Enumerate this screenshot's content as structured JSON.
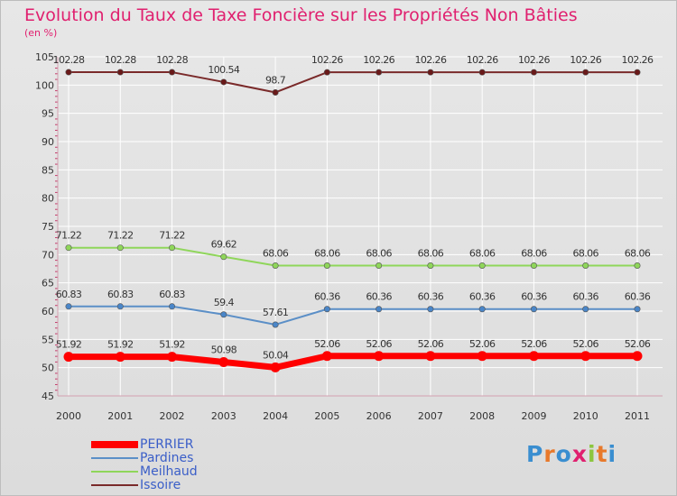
{
  "title": "Evolution du Taux de Taxe Foncière sur les Propriétés Non Bâties",
  "unit_label": "(en %)",
  "logo_text": "Proxiti",
  "colors": {
    "title": "#e0206f",
    "axis_text": "#333333",
    "legend_text": "#3a5ec8",
    "grid": "#ffffff"
  },
  "chart_data": {
    "type": "line",
    "title": "Evolution du Taux de Taxe Foncière sur les Propriétés Non Bâties",
    "ylabel": "(en %)",
    "xlabel": "",
    "categories": [
      "2000",
      "2001",
      "2002",
      "2003",
      "2004",
      "2005",
      "2006",
      "2007",
      "2008",
      "2009",
      "2010",
      "2011"
    ],
    "ylim": [
      45,
      105
    ],
    "yticks": [
      45,
      50,
      55,
      60,
      65,
      70,
      75,
      80,
      85,
      90,
      95,
      100,
      105
    ],
    "grid": true,
    "legend_position": "bottom-left",
    "series": [
      {
        "name": "PERRIER",
        "color": "#ff0000",
        "values": [
          51.92,
          51.92,
          51.92,
          50.98,
          50.04,
          52.06,
          52.06,
          52.06,
          52.06,
          52.06,
          52.06,
          52.06
        ],
        "labels": [
          "51.92",
          "51.92",
          "51.92",
          "50.98",
          "50.04",
          "52.06",
          "52.06",
          "52.06",
          "52.06",
          "52.06",
          "52.06",
          "52.06"
        ]
      },
      {
        "name": "Pardines",
        "color": "#5b8fc7",
        "values": [
          60.83,
          60.83,
          60.83,
          59.4,
          57.61,
          60.36,
          60.36,
          60.36,
          60.36,
          60.36,
          60.36,
          60.36
        ],
        "labels": [
          "60.83",
          "60.83",
          "60.83",
          "59.4",
          "57.61",
          "60.36",
          "60.36",
          "60.36",
          "60.36",
          "60.36",
          "60.36",
          "60.36"
        ]
      },
      {
        "name": "Meilhaud",
        "color": "#8fd65a",
        "values": [
          71.22,
          71.22,
          71.22,
          69.62,
          68.06,
          68.06,
          68.06,
          68.06,
          68.06,
          68.06,
          68.06,
          68.06
        ],
        "labels": [
          "71.22",
          "71.22",
          "71.22",
          "69.62",
          "68.06",
          "68.06",
          "68.06",
          "68.06",
          "68.06",
          "68.06",
          "68.06",
          "68.06"
        ]
      },
      {
        "name": "Issoire",
        "color": "#7a2a2a",
        "values": [
          102.28,
          102.28,
          102.28,
          100.54,
          98.7,
          102.26,
          102.26,
          102.26,
          102.26,
          102.26,
          102.26,
          102.26
        ],
        "labels": [
          "102.28",
          "102.28",
          "102.28",
          "100.54",
          "98.7",
          "102.26",
          "102.26",
          "102.26",
          "102.26",
          "102.26",
          "102.26",
          "102.26"
        ]
      }
    ]
  }
}
